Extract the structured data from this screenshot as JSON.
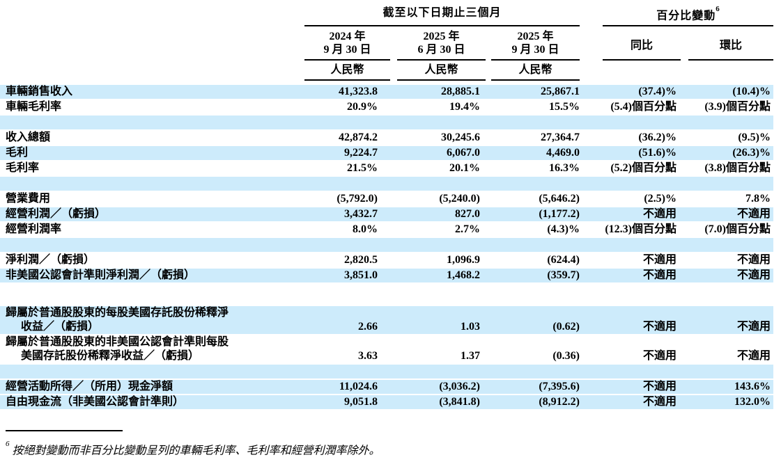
{
  "colors": {
    "row_highlight": "#CDEBFB"
  },
  "table": {
    "header": {
      "period_group": "截至以下日期止三個月",
      "change_group": "百分比變動",
      "change_group_sup": "6",
      "date_columns": [
        {
          "line1": "2024 年",
          "line2": "9 月 30 日"
        },
        {
          "line1": "2025 年",
          "line2": "6 月 30 日"
        },
        {
          "line1": "2025 年",
          "line2": "9 月 30 日"
        }
      ],
      "change_columns": [
        {
          "label": "同比"
        },
        {
          "label": "環比"
        }
      ],
      "currency_label": "人民幣"
    },
    "rows": [
      {
        "type": "data",
        "highlight": true,
        "label": [
          "車輛銷售收入"
        ],
        "values": [
          "41,323.8",
          "28,885.1",
          "25,867.1",
          "(37.4)%",
          "(10.4)%"
        ]
      },
      {
        "type": "data",
        "highlight": false,
        "label": [
          "車輛毛利率"
        ],
        "values": [
          "20.9%",
          "19.4%",
          "15.5%",
          "(5.4)個百分點",
          "(3.9)個百分點"
        ]
      },
      {
        "type": "spacer",
        "highlight": true
      },
      {
        "type": "data",
        "highlight": false,
        "label": [
          "收入總額"
        ],
        "values": [
          "42,874.2",
          "30,245.6",
          "27,364.7",
          "(36.2)%",
          "(9.5)%"
        ]
      },
      {
        "type": "data",
        "highlight": true,
        "label": [
          "毛利"
        ],
        "values": [
          "9,224.7",
          "6,067.0",
          "4,469.0",
          "(51.6)%",
          "(26.3)%"
        ]
      },
      {
        "type": "data",
        "highlight": false,
        "label": [
          "毛利率"
        ],
        "values": [
          "21.5%",
          "20.1%",
          "16.3%",
          "(5.2)個百分點",
          "(3.8)個百分點"
        ]
      },
      {
        "type": "spacer",
        "highlight": true
      },
      {
        "type": "data",
        "highlight": false,
        "label": [
          "營業費用"
        ],
        "values": [
          "(5,792.0)",
          "(5,240.0)",
          "(5,646.2)",
          "(2.5)%",
          "7.8%"
        ]
      },
      {
        "type": "data",
        "highlight": true,
        "label": [
          "經營利潤／（虧損）"
        ],
        "values": [
          "3,432.7",
          "827.0",
          "(1,177.2)",
          "不適用",
          "不適用"
        ]
      },
      {
        "type": "data",
        "highlight": false,
        "label": [
          "經營利潤率"
        ],
        "values": [
          "8.0%",
          "2.7%",
          "(4.3)%",
          "(12.3)個百分點",
          "(7.0)個百分點"
        ]
      },
      {
        "type": "spacer",
        "highlight": true
      },
      {
        "type": "data",
        "highlight": false,
        "label": [
          "淨利潤／（虧損）"
        ],
        "values": [
          "2,820.5",
          "1,096.9",
          "(624.4)",
          "不適用",
          "不適用"
        ]
      },
      {
        "type": "data",
        "highlight": true,
        "label": [
          "非美國公認會計準則淨利潤／（虧損）"
        ],
        "values": [
          "3,851.0",
          "1,468.2",
          "(359.7)",
          "不適用",
          "不適用"
        ]
      },
      {
        "type": "spacer",
        "highlight": false,
        "tall": true
      },
      {
        "type": "data",
        "highlight": true,
        "label": [
          "歸屬於普通股股東的每股美國存託股份稀釋淨",
          "收益／（虧損）"
        ],
        "values": [
          "2.66",
          "1.03",
          "(0.62)",
          "不適用",
          "不適用"
        ]
      },
      {
        "type": "data",
        "highlight": false,
        "label": [
          "歸屬於普通股股東的非美國公認會計準則每股",
          "美國存託股份稀釋淨收益／（虧損）"
        ],
        "values": [
          "3.63",
          "1.37",
          "(0.36)",
          "不適用",
          "不適用"
        ]
      },
      {
        "type": "spacer",
        "highlight": true
      },
      {
        "type": "data",
        "highlight": true,
        "label": [
          "經營活動所得／（所用）現金淨額"
        ],
        "values": [
          "11,024.6",
          "(3,036.2)",
          "(7,395.6)",
          "不適用",
          "143.6%"
        ]
      },
      {
        "type": "data",
        "highlight": true,
        "label": [
          "自由現金流（非美國公認會計準則）"
        ],
        "values": [
          "9,051.8",
          "(3,841.8)",
          "(8,912.2)",
          "不適用",
          "132.0%"
        ]
      }
    ]
  },
  "footnote": {
    "sup": "6",
    "text": "按絕對變動而非百分比變動呈列的車輛毛利率、毛利率和經營利潤率除外。"
  }
}
